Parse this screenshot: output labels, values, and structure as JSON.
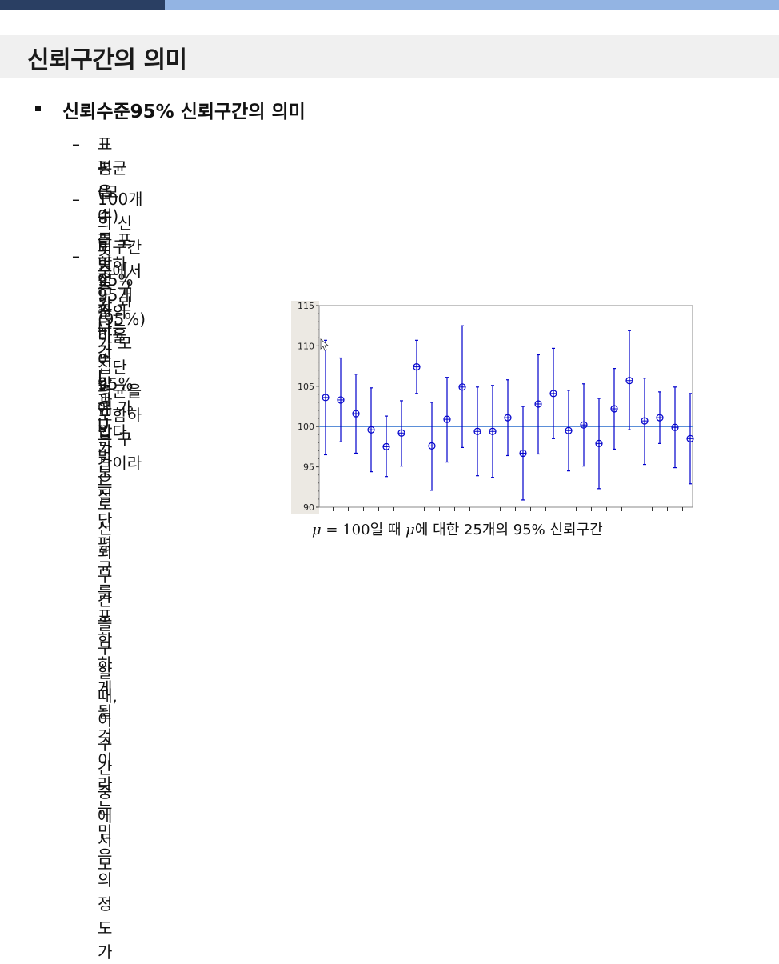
{
  "slide": {
    "title": "신뢰구간의 의미",
    "heading": "신뢰수준95% 신뢰구간의 의미",
    "bullets": [
      {
        "dash": "–",
        "line1": "표본을 여러 번 추출하여 같은 방법으로 신뢰구간을 구할 때, 이 구간 중에서 모",
        "line2": "평균(모수)를 포함하는 구간의 비율이 95%에 가깝다."
      },
      {
        "dash": "–",
        "line1": "100개의 신뢰구간 중에서 95개(95%)가 모집단 평균을 포함하는 구간이라는",
        "line2": "의미"
      },
      {
        "dash": "–",
        "line1": "추정된 구간 L과 U가 모집단 평균 를 포함하게 될 것이라는 믿음의 정도가",
        "line2": "95%가 된다는 것"
      }
    ],
    "caption": {
      "mu": "μ",
      "eq": " = 100",
      "part1": "일 때 ",
      "mu2": "μ",
      "part2": "에 대한 25개의 95% 신뢰구간"
    }
  },
  "colors": {
    "topbar_dark": "#2a3f63",
    "topbar_light": "#93b4e3",
    "interval": "#0000cc",
    "reference_line": "#5b8fd8"
  },
  "chart_data": {
    "type": "scatter",
    "title": "",
    "xlabel": "",
    "ylabel": "",
    "ylim": [
      90,
      115
    ],
    "yticks": [
      "90",
      "95",
      "100",
      "105",
      "110",
      "115"
    ],
    "reference_value": 100,
    "grid": false,
    "series": [
      {
        "means": [
          103.6,
          103.3,
          101.6,
          99.6,
          97.5,
          99.2,
          107.4,
          97.6,
          100.9,
          104.9,
          99.4,
          99.4,
          101.1,
          96.7,
          102.8,
          104.1,
          99.5,
          100.2,
          97.9,
          102.2,
          105.7,
          100.7,
          101.1,
          99.9,
          98.5
        ],
        "lower": [
          96.5,
          98.1,
          96.7,
          94.4,
          93.8,
          95.1,
          104.1,
          92.1,
          95.6,
          97.4,
          93.9,
          93.7,
          96.4,
          90.9,
          96.6,
          98.5,
          94.5,
          95.1,
          92.3,
          97.2,
          99.6,
          95.3,
          97.9,
          94.9,
          92.9
        ],
        "upper": [
          110.7,
          108.5,
          106.5,
          104.8,
          101.3,
          103.2,
          110.7,
          103.0,
          106.1,
          112.5,
          104.9,
          105.1,
          105.8,
          102.5,
          108.9,
          109.7,
          104.5,
          105.3,
          103.5,
          107.2,
          111.9,
          106.0,
          104.3,
          104.9,
          104.1
        ]
      }
    ]
  }
}
